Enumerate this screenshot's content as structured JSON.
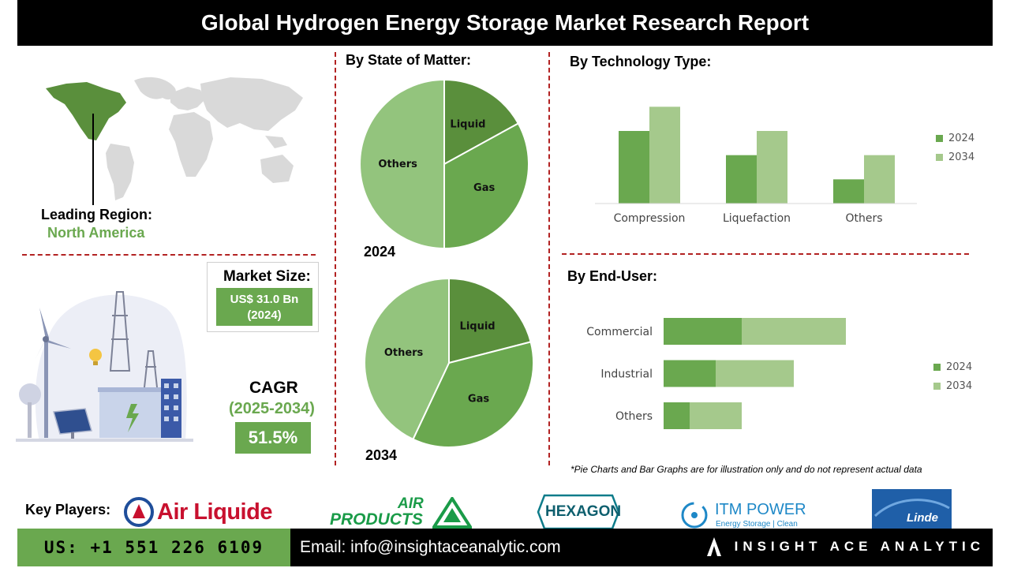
{
  "header": {
    "title": "Global Hydrogen Energy Storage Market Research Report"
  },
  "region": {
    "label": "Leading Region:",
    "value": "North America"
  },
  "market_size": {
    "label": "Market Size:",
    "value": "US$ 31.0 Bn",
    "year": "(2024)"
  },
  "cagr": {
    "label": "CAGR",
    "period": "(2025-2034)",
    "value": "51.5%"
  },
  "state_of_matter": {
    "title": "By  State of Matter:",
    "year_a": "2024",
    "year_b": "2034"
  },
  "technology": {
    "title": "By Technology Type:"
  },
  "end_user": {
    "title": "By End-User:"
  },
  "note": "*Pie Charts and Bar Graphs are for illustration only and do not represent actual data",
  "key_players": {
    "label": "Key Players:",
    "air_liquide": "Air Liquide",
    "air_products_1": "AIR",
    "air_products_2": "PRODUCTS",
    "hexagon": "HEXAGON",
    "itm_1": "ITM POWER",
    "itm_2": "Energy Storage | Clean Fuel",
    "linde": "Linde"
  },
  "footer": {
    "phone": "US: +1 551 226 6109",
    "email": "Email: info@insightaceanalytic.com",
    "brand": "INSIGHT ACE ANALYTIC"
  },
  "colors": {
    "dark_green": "#5a8f3c",
    "mid_green": "#6aa84f",
    "light_green": "#a5c98c",
    "pie_others": "#93c47d",
    "divider": "#b22222"
  },
  "chart_data": [
    {
      "type": "pie",
      "title": "2024",
      "slices": [
        {
          "label": "Liquid",
          "value": 17,
          "color": "#5a8f3c"
        },
        {
          "label": "Gas",
          "value": 33,
          "color": "#6aa84f"
        },
        {
          "label": "Others",
          "value": 50,
          "color": "#93c47d"
        }
      ]
    },
    {
      "type": "pie",
      "title": "2034",
      "slices": [
        {
          "label": "Liquid",
          "value": 21,
          "color": "#5a8f3c"
        },
        {
          "label": "Gas",
          "value": 36,
          "color": "#6aa84f"
        },
        {
          "label": "Others",
          "value": 43,
          "color": "#93c47d"
        }
      ]
    },
    {
      "type": "bar",
      "orientation": "vertical",
      "categories": [
        "Compression",
        "Liquefaction",
        "Others"
      ],
      "series": [
        {
          "name": "2024",
          "values": [
            3,
            2,
            1
          ],
          "color": "#6aa84f"
        },
        {
          "name": "2034",
          "values": [
            4,
            3,
            2
          ],
          "color": "#a5c98c"
        }
      ],
      "ylim": [
        0,
        4.5
      ],
      "legend": "right",
      "grid": false
    },
    {
      "type": "bar",
      "orientation": "horizontal",
      "stacked": true,
      "categories": [
        "Commercial",
        "Industrial",
        "Others"
      ],
      "series": [
        {
          "name": "2024",
          "values": [
            3,
            2,
            1
          ],
          "color": "#6aa84f"
        },
        {
          "name": "2034",
          "values": [
            4,
            3,
            2
          ],
          "color": "#a5c98c"
        }
      ],
      "xlim": [
        0,
        10
      ],
      "legend": "right",
      "grid": false
    }
  ]
}
